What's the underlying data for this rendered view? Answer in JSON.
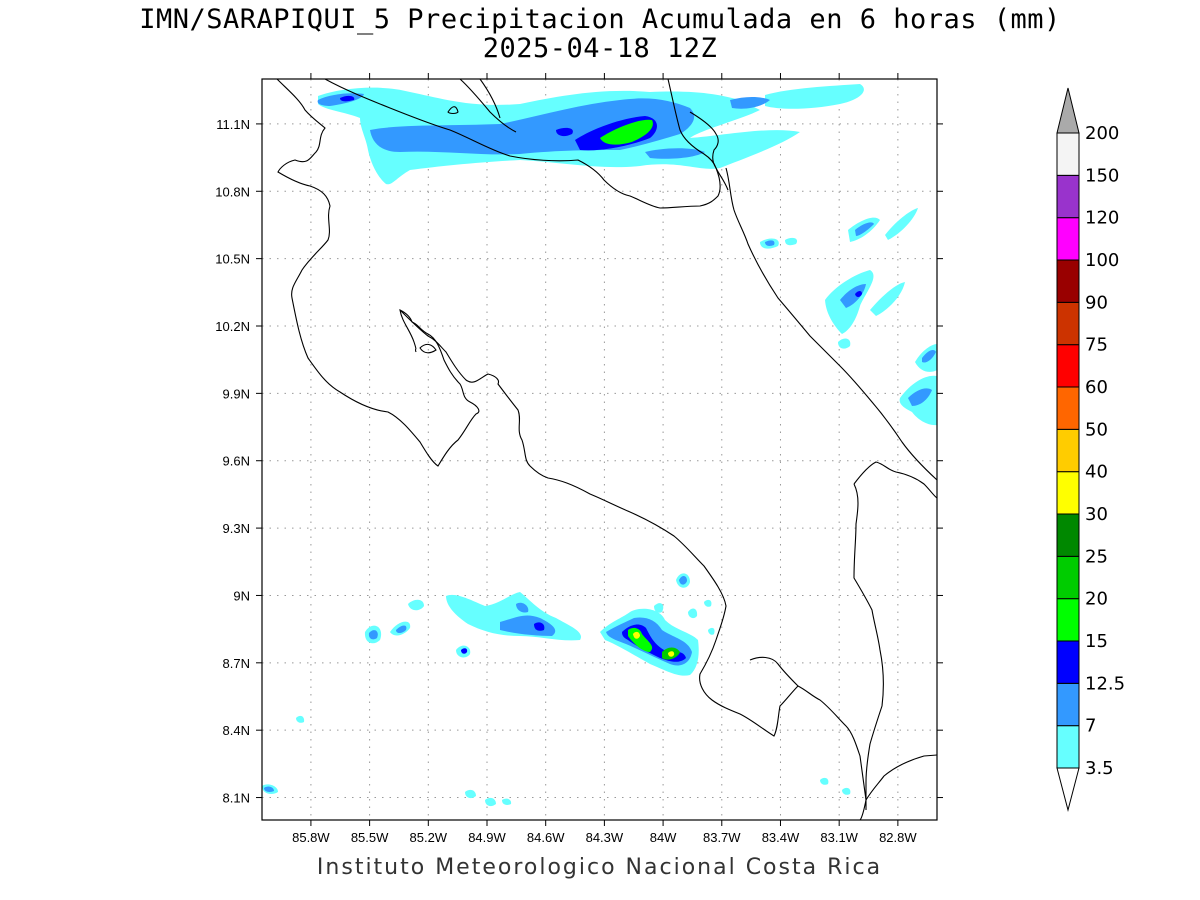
{
  "title": {
    "line1": "IMN/SARAPIQUI_5 Precipitacion Acumulada en 6 horas (mm)",
    "line2": "2025-04-18 12Z"
  },
  "footer": "Instituto Meteorologico Nacional Costa Rica",
  "map": {
    "lon_range": [
      -86.05,
      -82.6
    ],
    "lat_range": [
      8.0,
      11.3
    ],
    "lat_ticks": [
      {
        "value": 11.1,
        "label": "11.1N"
      },
      {
        "value": 10.8,
        "label": "10.8N"
      },
      {
        "value": 10.5,
        "label": "10.5N"
      },
      {
        "value": 10.2,
        "label": "10.2N"
      },
      {
        "value": 9.9,
        "label": "9.9N"
      },
      {
        "value": 9.6,
        "label": "9.6N"
      },
      {
        "value": 9.3,
        "label": "9.3N"
      },
      {
        "value": 9.0,
        "label": "9N"
      },
      {
        "value": 8.7,
        "label": "8.7N"
      },
      {
        "value": 8.4,
        "label": "8.4N"
      },
      {
        "value": 8.1,
        "label": "8.1N"
      }
    ],
    "lon_ticks": [
      {
        "value": -85.8,
        "label": "85.8W"
      },
      {
        "value": -85.5,
        "label": "85.5W"
      },
      {
        "value": -85.2,
        "label": "85.2W"
      },
      {
        "value": -84.9,
        "label": "84.9W"
      },
      {
        "value": -84.6,
        "label": "84.6W"
      },
      {
        "value": -84.3,
        "label": "84.3W"
      },
      {
        "value": -84.0,
        "label": "84W"
      },
      {
        "value": -83.7,
        "label": "83.7W"
      },
      {
        "value": -83.4,
        "label": "83.4W"
      },
      {
        "value": -83.1,
        "label": "83.1W"
      },
      {
        "value": -82.8,
        "label": "82.8W"
      }
    ],
    "grid": true
  },
  "colorbar": {
    "levels": [
      {
        "label": "3.5",
        "color": "#66ffff"
      },
      {
        "label": "7",
        "color": "#3399ff"
      },
      {
        "label": "12.5",
        "color": "#0000ff"
      },
      {
        "label": "15",
        "color": "#00ff00"
      },
      {
        "label": "20",
        "color": "#00cc00"
      },
      {
        "label": "25",
        "color": "#008800"
      },
      {
        "label": "30",
        "color": "#ffff00"
      },
      {
        "label": "40",
        "color": "#ffcc00"
      },
      {
        "label": "50",
        "color": "#ff6600"
      },
      {
        "label": "60",
        "color": "#ff0000"
      },
      {
        "label": "75",
        "color": "#cc3300"
      },
      {
        "label": "90",
        "color": "#990000"
      },
      {
        "label": "100",
        "color": "#ff00ff"
      },
      {
        "label": "120",
        "color": "#9933cc"
      },
      {
        "label": "150",
        "color": "#f4f4f4"
      },
      {
        "label": "200",
        "color": "#aaaaaa"
      }
    ],
    "top_arrow_color": "#aaaaaa",
    "bottom_arrow_color": "#ffffff"
  }
}
